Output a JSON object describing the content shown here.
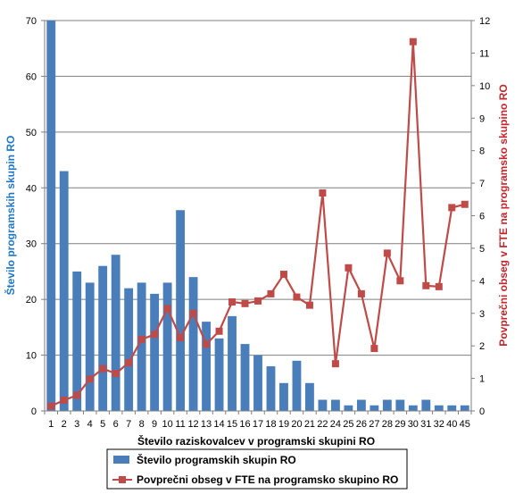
{
  "chart_data": {
    "type": "bar+line",
    "categories": [
      "1",
      "2",
      "3",
      "4",
      "5",
      "6",
      "7",
      "8",
      "9",
      "10",
      "11",
      "12",
      "13",
      "14",
      "15",
      "16",
      "17",
      "18",
      "19",
      "20",
      "21",
      "22",
      "24",
      "25",
      "26",
      "27",
      "28",
      "29",
      "30",
      "31",
      "32",
      "40",
      "45"
    ],
    "xlabel": "Število raziskovalcev v programski skupini RO",
    "ylabel_left": "Število programskih skupin RO",
    "ylabel_right": "Povprečni obseg v FTE na programsko skupino RO",
    "ylim_left": [
      0,
      70
    ],
    "yticks_left": [
      "0",
      "10",
      "20",
      "30",
      "40",
      "50",
      "60",
      "70"
    ],
    "ylim_right": [
      0,
      12
    ],
    "yticks_right": [
      "0",
      "1",
      "2",
      "3",
      "4",
      "5",
      "6",
      "7",
      "8",
      "9",
      "10",
      "11",
      "12"
    ],
    "grid": true,
    "legend_position": "bottom",
    "series": [
      {
        "name": "Število programskih skupin RO",
        "type": "bar",
        "axis": "left",
        "color": "#4a7ebb",
        "values": [
          70,
          43,
          25,
          23,
          26,
          28,
          22,
          23,
          21,
          23,
          36,
          24,
          16,
          13,
          17,
          12,
          10,
          8,
          5,
          9,
          5,
          2,
          2,
          1,
          2,
          1,
          2,
          2,
          1,
          2,
          1,
          1,
          1
        ]
      },
      {
        "name": "Povprečni obseg v FTE na programsko skupino RO",
        "type": "line",
        "axis": "right",
        "color": "#be4b48",
        "values": [
          0.15,
          0.33,
          0.48,
          0.98,
          1.3,
          1.15,
          1.48,
          2.2,
          2.35,
          3.15,
          2.25,
          3.0,
          2.05,
          2.45,
          3.35,
          3.3,
          3.38,
          3.6,
          4.2,
          3.5,
          3.25,
          6.7,
          1.45,
          4.4,
          3.6,
          1.92,
          4.85,
          4.0,
          11.35,
          3.85,
          3.82,
          6.25,
          6.35
        ]
      }
    ]
  }
}
